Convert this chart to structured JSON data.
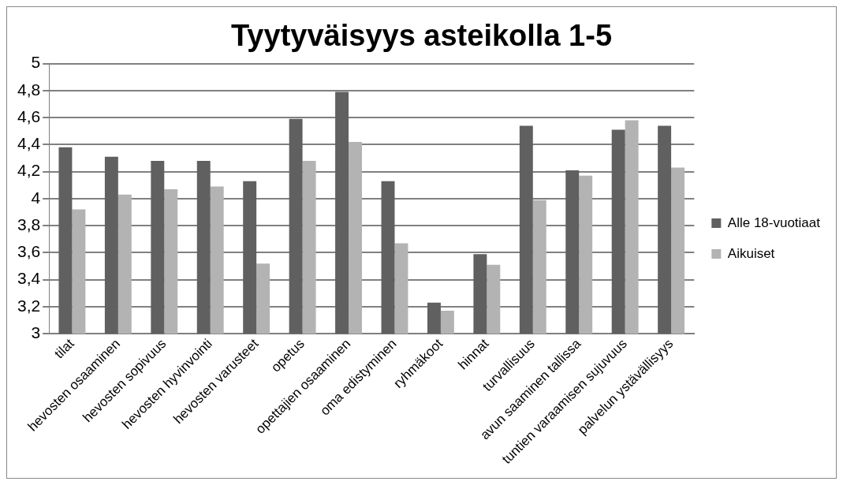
{
  "chart_data": {
    "type": "bar",
    "title": "Tyytyväisyys asteikolla 1-5",
    "categories": [
      "tilat",
      "hevosten osaaminen",
      "hevosten sopivuus",
      "hevosten hyvinvointi",
      "hevosten varusteet",
      "opetus",
      "opettajien osaaminen",
      "oma edistyminen",
      "ryhmäkoot",
      "hinnat",
      "turvallisuus",
      "avun saaminen tallissa",
      "tuntien varaamisen sujuvuus",
      "palvelun ystävällisyys"
    ],
    "series": [
      {
        "name": "Alle 18-vuotiaat",
        "color": "#606060",
        "values": [
          4.38,
          4.31,
          4.28,
          4.28,
          4.13,
          4.59,
          4.79,
          4.13,
          3.23,
          3.59,
          4.54,
          4.21,
          4.51,
          4.54
        ]
      },
      {
        "name": "Aikuiset",
        "color": "#b3b3b3",
        "values": [
          3.92,
          4.03,
          4.07,
          4.09,
          3.52,
          4.28,
          4.42,
          3.67,
          3.17,
          3.51,
          3.99,
          4.17,
          4.58,
          4.23
        ]
      }
    ],
    "ylim": [
      3,
      5
    ],
    "yticks": [
      3,
      {
        "value": 3.2,
        "label": "3,2"
      },
      {
        "value": 3.4,
        "label": "3,4"
      },
      {
        "value": 3.6,
        "label": "3,6"
      },
      {
        "value": 3.8,
        "label": "3,8"
      },
      4,
      {
        "value": 4.2,
        "label": "4,2"
      },
      {
        "value": 4.4,
        "label": "4,4"
      },
      {
        "value": 4.6,
        "label": "4,6"
      },
      {
        "value": 4.8,
        "label": "4,8"
      },
      5
    ],
    "grid": "y",
    "legend": "right"
  }
}
